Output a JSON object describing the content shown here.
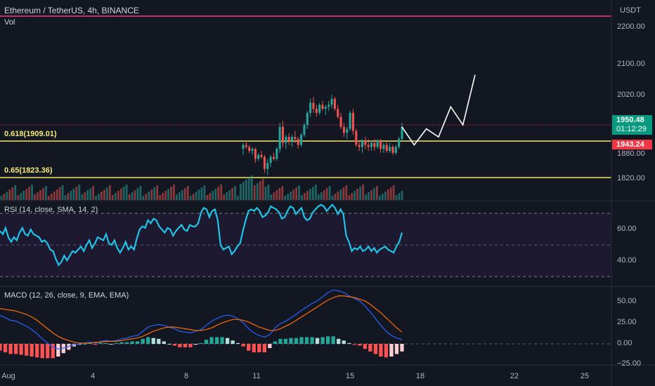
{
  "header": {
    "symbol_title": "Ethereum / TetherUS, 4h, BINANCE",
    "vol_label": "Vol",
    "currency": "USDT"
  },
  "fib_levels": [
    {
      "label": "0.618(1909.01)",
      "price": 1909.01
    },
    {
      "label": "0.65(1823.36)",
      "price": 1823.36
    }
  ],
  "price_axis": {
    "ticks": [
      "2200.00",
      "2100.00",
      "2020.00",
      "1880.00",
      "1820.00"
    ]
  },
  "price_tags": {
    "current_price": "1950.48",
    "countdown": "01:12:29",
    "low_tag": "1943.24"
  },
  "rsi": {
    "label": "RSI (14, close, SMA, 14, 2)",
    "ticks": [
      "60.00",
      "40.00"
    ],
    "values": [
      59,
      57,
      61,
      55,
      52,
      55,
      53,
      58,
      61,
      57,
      56,
      60,
      57,
      56,
      55,
      52,
      53,
      51,
      47,
      46,
      41,
      37,
      39,
      43,
      40,
      43,
      46,
      45,
      47,
      49,
      46,
      50,
      53,
      48,
      51,
      55,
      54,
      53,
      57,
      51,
      50,
      53,
      48,
      45,
      48,
      52,
      47,
      49,
      47,
      54,
      60,
      62,
      61,
      66,
      64,
      67,
      66,
      62,
      60,
      58,
      61,
      60,
      56,
      59,
      61,
      63,
      60,
      59,
      63,
      62,
      62,
      64,
      71,
      74,
      73,
      68,
      72,
      73,
      66,
      50,
      47,
      48,
      49,
      44,
      46,
      49,
      51,
      59,
      66,
      72,
      73,
      72,
      74,
      72,
      68,
      69,
      71,
      75,
      74,
      73,
      71,
      67,
      68,
      72,
      75,
      74,
      70,
      72,
      74,
      68,
      66,
      67,
      71,
      73,
      75,
      76,
      75,
      72,
      74,
      76,
      74,
      70,
      73,
      70,
      56,
      52,
      46,
      48,
      47,
      49,
      46,
      47,
      49,
      46,
      48,
      45,
      47,
      48,
      49,
      47,
      46,
      45,
      49,
      52,
      58
    ]
  },
  "macd": {
    "label": "MACD (12, 26, close, 9, EMA, EMA)",
    "ticks": [
      "50.00",
      "25.00",
      "0.00",
      "−25.00"
    ],
    "macd_line": [
      34,
      31,
      28,
      27,
      24,
      21,
      17,
      12,
      6,
      1,
      -4,
      -6,
      -5,
      -3,
      -1,
      0,
      1,
      2,
      1,
      3,
      4,
      3,
      4,
      6,
      7,
      9,
      10,
      15,
      20,
      22,
      23,
      22,
      20,
      18,
      15,
      14,
      13,
      15,
      17,
      22,
      27,
      30,
      33,
      34,
      33,
      30,
      25,
      18,
      13,
      10,
      8,
      11,
      19,
      24,
      27,
      31,
      35,
      40,
      44,
      48,
      51,
      56,
      61,
      64,
      63,
      61,
      57,
      54,
      51,
      45,
      38,
      30,
      22,
      15,
      10,
      7,
      5
    ],
    "signal_line": [
      42,
      41,
      40,
      39,
      37,
      35,
      32,
      28,
      23,
      18,
      13,
      9,
      6,
      4,
      2,
      1,
      1,
      1,
      2,
      2,
      3,
      3,
      3,
      4,
      5,
      6,
      7,
      9,
      12,
      15,
      17,
      19,
      20,
      20,
      19,
      18,
      17,
      16,
      16,
      17,
      19,
      22,
      25,
      27,
      29,
      29,
      28,
      26,
      23,
      20,
      18,
      16,
      16,
      18,
      21,
      24,
      28,
      32,
      36,
      40,
      44,
      48,
      52,
      55,
      57,
      57,
      56,
      55,
      53,
      51,
      47,
      42,
      37,
      31,
      25,
      19,
      14
    ],
    "histogram": [
      -8,
      -10,
      -12,
      -12,
      -13,
      -14,
      -15,
      -16,
      -17,
      -17,
      -17,
      -15,
      -11,
      -7,
      -3,
      -1,
      0,
      1,
      -1,
      1,
      1,
      0,
      1,
      2,
      2,
      3,
      3,
      6,
      8,
      7,
      6,
      3,
      0,
      -2,
      -4,
      -4,
      -4,
      -1,
      1,
      5,
      8,
      8,
      8,
      7,
      4,
      1,
      -3,
      -8,
      -10,
      -10,
      -10,
      -5,
      3,
      6,
      6,
      7,
      7,
      8,
      8,
      8,
      7,
      8,
      9,
      9,
      6,
      4,
      1,
      -1,
      -2,
      -6,
      -9,
      -12,
      -15,
      -16,
      -15,
      -12,
      -9
    ]
  },
  "time_axis": {
    "ticks": [
      "Aug",
      "4",
      "8",
      "11",
      "15",
      "18",
      "22",
      "25"
    ]
  },
  "chart_data": {
    "type": "candlestick",
    "title": "Ethereum / TetherUS, 4h, BINANCE",
    "ylabel": "USDT",
    "ylim": [
      1800,
      2230
    ],
    "horizontal_lines": [
      2213,
      1956,
      1909.01,
      1823.36
    ],
    "candles": [
      [
        1895,
        1910,
        1880,
        1905
      ],
      [
        1905,
        1915,
        1895,
        1900
      ],
      [
        1900,
        1905,
        1885,
        1890
      ],
      [
        1890,
        1900,
        1880,
        1895
      ],
      [
        1895,
        1898,
        1860,
        1870
      ],
      [
        1870,
        1885,
        1865,
        1880
      ],
      [
        1880,
        1890,
        1870,
        1875
      ],
      [
        1875,
        1880,
        1835,
        1845
      ],
      [
        1845,
        1870,
        1830,
        1860
      ],
      [
        1860,
        1880,
        1850,
        1875
      ],
      [
        1875,
        1885,
        1865,
        1870
      ],
      [
        1870,
        1900,
        1865,
        1895
      ],
      [
        1895,
        1960,
        1885,
        1950
      ],
      [
        1950,
        1965,
        1900,
        1910
      ],
      [
        1910,
        1930,
        1895,
        1925
      ],
      [
        1925,
        1935,
        1905,
        1915
      ],
      [
        1915,
        1930,
        1900,
        1925
      ],
      [
        1925,
        1940,
        1910,
        1920
      ],
      [
        1920,
        1925,
        1895,
        1905
      ],
      [
        1905,
        1935,
        1900,
        1930
      ],
      [
        1930,
        1960,
        1925,
        1955
      ],
      [
        1955,
        1990,
        1945,
        1985
      ],
      [
        1985,
        2020,
        1975,
        2010
      ],
      [
        2010,
        2025,
        1985,
        1995
      ],
      [
        1995,
        2005,
        1975,
        1985
      ],
      [
        1985,
        2010,
        1980,
        2005
      ],
      [
        2005,
        2015,
        1990,
        1995
      ],
      [
        1995,
        2005,
        1980,
        2000
      ],
      [
        2000,
        2015,
        1990,
        2005
      ],
      [
        2005,
        2030,
        1995,
        2020
      ],
      [
        2020,
        2025,
        1990,
        1995
      ],
      [
        1995,
        2005,
        1970,
        1975
      ],
      [
        1975,
        1985,
        1945,
        1950
      ],
      [
        1950,
        1960,
        1925,
        1935
      ],
      [
        1935,
        1950,
        1920,
        1945
      ],
      [
        1945,
        1990,
        1940,
        1985
      ],
      [
        1985,
        1995,
        1930,
        1940
      ],
      [
        1940,
        1945,
        1900,
        1905
      ],
      [
        1905,
        1915,
        1890,
        1900
      ],
      [
        1900,
        1920,
        1885,
        1915
      ],
      [
        1915,
        1925,
        1895,
        1905
      ],
      [
        1905,
        1920,
        1890,
        1900
      ],
      [
        1900,
        1915,
        1890,
        1910
      ],
      [
        1910,
        1920,
        1890,
        1900
      ],
      [
        1900,
        1920,
        1895,
        1915
      ],
      [
        1915,
        1920,
        1885,
        1895
      ],
      [
        1895,
        1910,
        1885,
        1905
      ],
      [
        1905,
        1915,
        1885,
        1890
      ],
      [
        1890,
        1910,
        1885,
        1900
      ],
      [
        1900,
        1905,
        1880,
        1885
      ],
      [
        1885,
        1905,
        1880,
        1900
      ],
      [
        1900,
        1925,
        1895,
        1920
      ],
      [
        1920,
        1960,
        1915,
        1950
      ]
    ],
    "projection_path": [
      [
        1950,
        0
      ],
      [
        1905,
        1
      ],
      [
        1945,
        2
      ],
      [
        1925,
        3
      ],
      [
        2000,
        4
      ],
      [
        1955,
        5
      ],
      [
        2080,
        6
      ]
    ]
  }
}
